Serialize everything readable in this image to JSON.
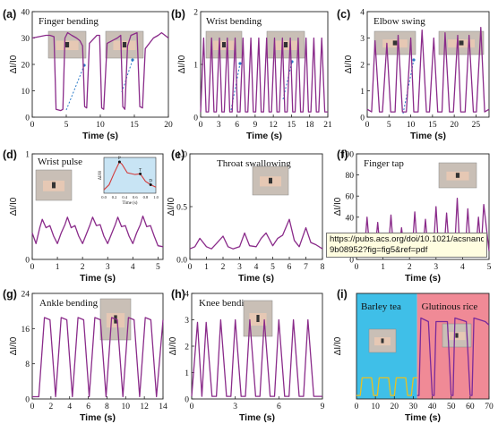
{
  "figure": {
    "tooltip": {
      "line1": "https://pubs.acs.org/doi/10.1021/acsnano.",
      "line2": "9b08952?fig=fig5&ref=pdf"
    }
  },
  "chart_data": [
    {
      "id": "a",
      "panel_label": "(a)",
      "type": "line",
      "title": "Finger bending",
      "xlabel": "Time (s)",
      "ylabel": "ΔI/I0",
      "xlim": [
        0,
        20
      ],
      "ylim": [
        0,
        40
      ],
      "xticks": [
        0,
        5,
        10,
        15,
        20
      ],
      "yticks": [
        0,
        10,
        20,
        30,
        40
      ],
      "x": [
        0,
        1,
        2,
        2.6,
        3.2,
        3.5,
        4.2,
        4.5,
        4.8,
        5.2,
        5.8,
        6.5,
        7,
        7.4,
        7.7,
        8,
        8.4,
        9.5,
        9.9,
        10.2,
        10.5,
        11,
        12.5,
        13,
        13.3,
        13.6,
        14,
        14.5,
        15.4,
        15.8,
        16.2,
        16.6,
        17.8,
        18.5,
        19,
        19.5,
        20
      ],
      "y": [
        30,
        30.5,
        31,
        31,
        30.5,
        3,
        2.5,
        3,
        30,
        32,
        31,
        30,
        29,
        27,
        4,
        3.5,
        28,
        31,
        31,
        3.5,
        3,
        28,
        30,
        31,
        4,
        3,
        27,
        31,
        32,
        4,
        3.5,
        26,
        30,
        31,
        32,
        31,
        30
      ],
      "color": "#8a2b8a",
      "inset": true
    },
    {
      "id": "b",
      "panel_label": "(b)",
      "type": "line",
      "title": "Wrist bending",
      "xlabel": "Time (s)",
      "ylabel": "ΔI/I0",
      "xlim": [
        0,
        21
      ],
      "ylim": [
        0,
        2
      ],
      "xticks": [
        0,
        3,
        6,
        9,
        12,
        15,
        18,
        21
      ],
      "yticks": [
        0,
        1,
        2
      ],
      "x": [
        0,
        0.5,
        0.9,
        1.3,
        1.8,
        2.2,
        2.6,
        3.1,
        3.5,
        3.9,
        4.4,
        4.8,
        5.2,
        5.7,
        6.1,
        6.5,
        7,
        7.4,
        7.8,
        8.3,
        8.7,
        9.1,
        9.6,
        10,
        10.4,
        10.9,
        11.3,
        11.7,
        12.2,
        12.6,
        13,
        13.5,
        13.9,
        14.3,
        14.8,
        15.2,
        15.6,
        16.1,
        16.5,
        16.9,
        17.4,
        17.8,
        18.2,
        18.7,
        19.1,
        19.5,
        20,
        20.5,
        21
      ],
      "y": [
        0.1,
        1.5,
        0.1,
        0.1,
        1.5,
        0.1,
        0.1,
        1.5,
        0.1,
        0.1,
        1.5,
        0.1,
        0.1,
        1.5,
        0.1,
        0.1,
        1.5,
        0.1,
        0.1,
        1.5,
        0.1,
        0.1,
        1.5,
        0.1,
        0.1,
        1.5,
        0.1,
        0.1,
        1.5,
        0.1,
        0.1,
        1.5,
        0.1,
        0.1,
        1.5,
        0.1,
        0.1,
        1.5,
        0.1,
        0.1,
        1.5,
        0.1,
        0.1,
        1.5,
        0.1,
        0.1,
        1.5,
        0.1,
        0.1
      ],
      "color": "#8a2b8a",
      "inset": true
    },
    {
      "id": "c",
      "panel_label": "(c)",
      "type": "line",
      "title": "Elbow swing",
      "xlabel": "Time (s)",
      "ylabel": "ΔI/I0",
      "xlim": [
        0,
        28
      ],
      "ylim": [
        0,
        4
      ],
      "xticks": [
        0,
        5,
        10,
        15,
        20,
        25
      ],
      "yticks": [
        0,
        1,
        2,
        3,
        4
      ],
      "x": [
        0,
        1,
        1.8,
        2.8,
        3.5,
        4.5,
        5.4,
        6.4,
        7.1,
        8.1,
        9,
        10,
        10.7,
        11.7,
        12.6,
        13.6,
        14.3,
        15.3,
        16.2,
        17.2,
        17.9,
        18.9,
        19.8,
        20.8,
        21.5,
        22.5,
        23.4,
        24.4,
        25.1,
        26.1,
        27,
        28
      ],
      "y": [
        0.3,
        0.2,
        2.9,
        0.2,
        0.2,
        2.8,
        0.2,
        0.2,
        3.1,
        0.2,
        0.2,
        3.0,
        0.2,
        0.2,
        3.3,
        0.2,
        0.2,
        3.0,
        0.2,
        0.2,
        3.2,
        0.2,
        0.2,
        3.1,
        0.2,
        0.2,
        3.1,
        0.2,
        0.2,
        3.4,
        0.2,
        0.3
      ],
      "color": "#8a2b8a",
      "inset": true
    },
    {
      "id": "d",
      "panel_label": "(d)",
      "type": "line",
      "title": "Wrist pulse",
      "xlabel": "Time (s)",
      "ylabel": "ΔI/I0",
      "xlim": [
        0,
        5.2
      ],
      "ylim": [
        0,
        1
      ],
      "xticks": [
        0,
        1,
        2,
        3,
        4,
        5
      ],
      "yticks": [
        0,
        1
      ],
      "x": [
        0,
        0.15,
        0.3,
        0.4,
        0.55,
        0.7,
        0.85,
        1,
        1.15,
        1.3,
        1.4,
        1.55,
        1.7,
        1.85,
        2,
        2.15,
        2.3,
        2.4,
        2.55,
        2.7,
        2.85,
        3,
        3.15,
        3.3,
        3.4,
        3.55,
        3.7,
        3.85,
        4,
        4.15,
        4.3,
        4.4,
        4.55,
        4.7,
        4.85,
        5,
        5.2
      ],
      "y": [
        0.25,
        0.15,
        0.3,
        0.38,
        0.3,
        0.32,
        0.22,
        0.15,
        0.25,
        0.33,
        0.4,
        0.3,
        0.32,
        0.22,
        0.15,
        0.24,
        0.33,
        0.4,
        0.32,
        0.33,
        0.22,
        0.15,
        0.24,
        0.33,
        0.4,
        0.31,
        0.32,
        0.22,
        0.15,
        0.25,
        0.33,
        0.41,
        0.31,
        0.32,
        0.22,
        0.13,
        0.12
      ],
      "color": "#8a2b8a",
      "inset": true,
      "inset_chart": {
        "xlabel": "Time (s)",
        "ylabel": "ΔI/I0",
        "xticks": [
          "0.0",
          "0.2",
          "0.4",
          "0.6",
          "0.8",
          "1.0"
        ],
        "markers": [
          "P",
          "T",
          "D"
        ],
        "x": [
          0,
          0.1,
          0.2,
          0.3,
          0.35,
          0.45,
          0.6,
          0.7,
          0.8,
          0.9,
          1.0
        ],
        "y": [
          0.1,
          0.25,
          0.6,
          0.92,
          0.85,
          0.6,
          0.55,
          0.57,
          0.35,
          0.25,
          0.18
        ]
      }
    },
    {
      "id": "e",
      "panel_label": "(e)",
      "type": "line",
      "title": "Throat swallowing",
      "xlabel": "Time (s)",
      "ylabel": "ΔI/I0",
      "xlim": [
        0,
        8
      ],
      "ylim": [
        0,
        1
      ],
      "xticks": [
        0,
        1,
        2,
        3,
        4,
        5,
        6,
        7,
        8
      ],
      "yticks": [
        0,
        0.5,
        1.0
      ],
      "ytick_labels": [
        "0.0",
        "0.5",
        "1.0"
      ],
      "x": [
        0,
        0.3,
        0.6,
        1,
        1.3,
        1.6,
        2,
        2.3,
        2.6,
        3,
        3.3,
        3.6,
        4,
        4.3,
        4.6,
        5,
        5.3,
        5.6,
        6,
        6.3,
        6.6,
        7,
        7.3,
        7.6,
        8
      ],
      "y": [
        0.1,
        0.12,
        0.2,
        0.12,
        0.1,
        0.15,
        0.22,
        0.12,
        0.1,
        0.12,
        0.25,
        0.13,
        0.12,
        0.2,
        0.25,
        0.13,
        0.2,
        0.23,
        0.38,
        0.18,
        0.12,
        0.3,
        0.16,
        0.14,
        0.1
      ],
      "color": "#8a2b8a",
      "inset": true
    },
    {
      "id": "f",
      "panel_label": "(f)",
      "type": "line",
      "title": "Finger tap",
      "xlabel": "Time (s)",
      "ylabel": "ΔI/I0",
      "xlim": [
        0,
        5
      ],
      "ylim": [
        0,
        100
      ],
      "xticks": [
        0,
        1,
        2,
        3,
        4,
        5
      ],
      "yticks": [
        0,
        20,
        40,
        60,
        80,
        100
      ],
      "x": [
        0,
        0.3,
        0.4,
        0.5,
        0.7,
        0.8,
        0.9,
        1.2,
        1.3,
        1.4,
        1.6,
        1.7,
        1.8,
        2.1,
        2.2,
        2.3,
        2.5,
        2.6,
        2.7,
        2.9,
        3,
        3.1,
        3.3,
        3.4,
        3.5,
        3.7,
        3.8,
        3.9,
        4.1,
        4.2,
        4.3,
        4.5,
        4.6,
        4.7,
        4.8,
        5
      ],
      "y": [
        8,
        8,
        40,
        9,
        8,
        35,
        8,
        8,
        42,
        8,
        8,
        30,
        8,
        8,
        45,
        8,
        8,
        38,
        8,
        8,
        50,
        8,
        8,
        44,
        8,
        8,
        58,
        8,
        8,
        48,
        8,
        8,
        40,
        8,
        52,
        8
      ],
      "color": "#8a2b8a",
      "inset": true
    },
    {
      "id": "g",
      "panel_label": "(g)",
      "type": "line",
      "title": "Ankle bending",
      "xlabel": "Time (s)",
      "ylabel": "ΔI/I0",
      "xlim": [
        0,
        14
      ],
      "ylim": [
        0,
        24
      ],
      "xticks": [
        0,
        2,
        4,
        6,
        8,
        10,
        12,
        14
      ],
      "yticks": [
        0,
        8,
        16,
        24
      ],
      "x": [
        0,
        0.7,
        1.3,
        1.9,
        2.5,
        3.1,
        3.7,
        4.3,
        4.9,
        5.5,
        6.1,
        6.7,
        7.3,
        7.9,
        8.5,
        9.1,
        9.7,
        10.3,
        10.9,
        11.5,
        12.1,
        12.7,
        13.3,
        14
      ],
      "y": [
        0.5,
        0.5,
        18.5,
        18,
        0.5,
        18.5,
        18,
        0.5,
        18.5,
        18,
        0.5,
        18.5,
        18,
        0.5,
        18.5,
        18,
        0.5,
        18.5,
        18,
        0.5,
        18.5,
        18,
        0.5,
        18
      ],
      "color": "#8a2b8a",
      "inset": true
    },
    {
      "id": "h",
      "panel_label": "(h)",
      "type": "line",
      "title": "Knee bending",
      "xlabel": "Time (s)",
      "ylabel": "ΔI/I0",
      "xlim": [
        0,
        9
      ],
      "ylim": [
        0,
        4
      ],
      "xticks": [
        0,
        3,
        6,
        9
      ],
      "yticks": [
        0,
        1,
        2,
        3,
        4
      ],
      "x": [
        0,
        0.4,
        0.7,
        1,
        1.4,
        1.7,
        2,
        2.4,
        2.7,
        3,
        3.4,
        3.7,
        4,
        4.4,
        4.7,
        5,
        5.4,
        5.7,
        6,
        6.4,
        6.7,
        7,
        7.4,
        7.7,
        8,
        8.4,
        8.7,
        9
      ],
      "y": [
        0.1,
        2.9,
        0.1,
        2.9,
        0.1,
        0.1,
        3,
        0.1,
        0.1,
        3,
        0.1,
        0.1,
        3,
        0.1,
        0.1,
        3,
        0.1,
        0.1,
        3,
        0.1,
        0.1,
        3,
        0.1,
        0.1,
        3,
        0.1,
        0.1,
        0.1
      ],
      "color": "#8a2b8a",
      "inset": true
    },
    {
      "id": "i",
      "panel_label": "(i)",
      "type": "line",
      "xlabel": "Time (s)",
      "ylabel": "ΔI/I0",
      "xlim": [
        0,
        70
      ],
      "ylim": [
        0,
        0.3
      ],
      "xticks": [
        0,
        10,
        20,
        30,
        40,
        50,
        60,
        70
      ],
      "yticks": [],
      "regions": [
        {
          "label": "Barley tea",
          "x0": 0,
          "x1": 32,
          "color": "#3fbfe8"
        },
        {
          "label": "Glutinous rice",
          "x0": 32,
          "x1": 70,
          "color": "#f08a96"
        }
      ],
      "series": [
        {
          "color": "#e8c020",
          "x": [
            0,
            2,
            3,
            8,
            9,
            11,
            12,
            17,
            18,
            20,
            21,
            26,
            27,
            29,
            30,
            32
          ],
          "y": [
            0.01,
            0.01,
            0.06,
            0.06,
            0.01,
            0.01,
            0.06,
            0.06,
            0.01,
            0.01,
            0.06,
            0.06,
            0.01,
            0.01,
            0.06,
            0.06
          ]
        },
        {
          "color": "#7a2a9a",
          "x": [
            32,
            33,
            34,
            38,
            40,
            41,
            42,
            48,
            50,
            51,
            52,
            58,
            60,
            61,
            62,
            68,
            70
          ],
          "y": [
            0.01,
            0.01,
            0.23,
            0.22,
            0.01,
            0.01,
            0.22,
            0.22,
            0.01,
            0.01,
            0.23,
            0.22,
            0.01,
            0.01,
            0.23,
            0.22,
            0.21
          ]
        }
      ],
      "inset": true
    }
  ]
}
